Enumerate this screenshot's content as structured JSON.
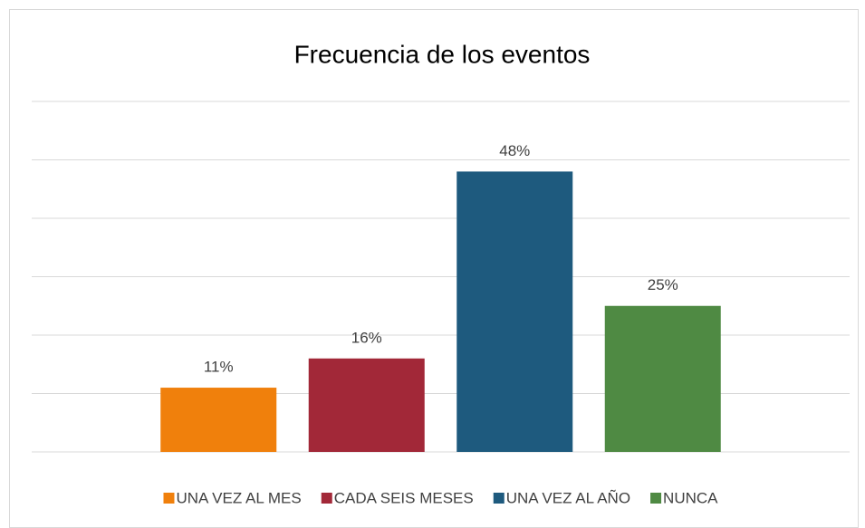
{
  "chart_data": {
    "type": "bar",
    "title": "Frecuencia de los eventos",
    "categories": [
      "UNA VEZ AL MES",
      "CADA SEIS MESES",
      "UNA VEZ AL AÑO",
      "NUNCA"
    ],
    "values": [
      11,
      16,
      48,
      25
    ],
    "value_labels": [
      "11%",
      "16%",
      "48%",
      "25%"
    ],
    "colors": [
      "#f0800c",
      "#a22838",
      "#1e5a7e",
      "#4f8a43"
    ],
    "ylim": [
      0,
      60
    ],
    "yticks": [
      0,
      10,
      20,
      30,
      40,
      50,
      60
    ],
    "grid": true,
    "legend": "bottom"
  }
}
